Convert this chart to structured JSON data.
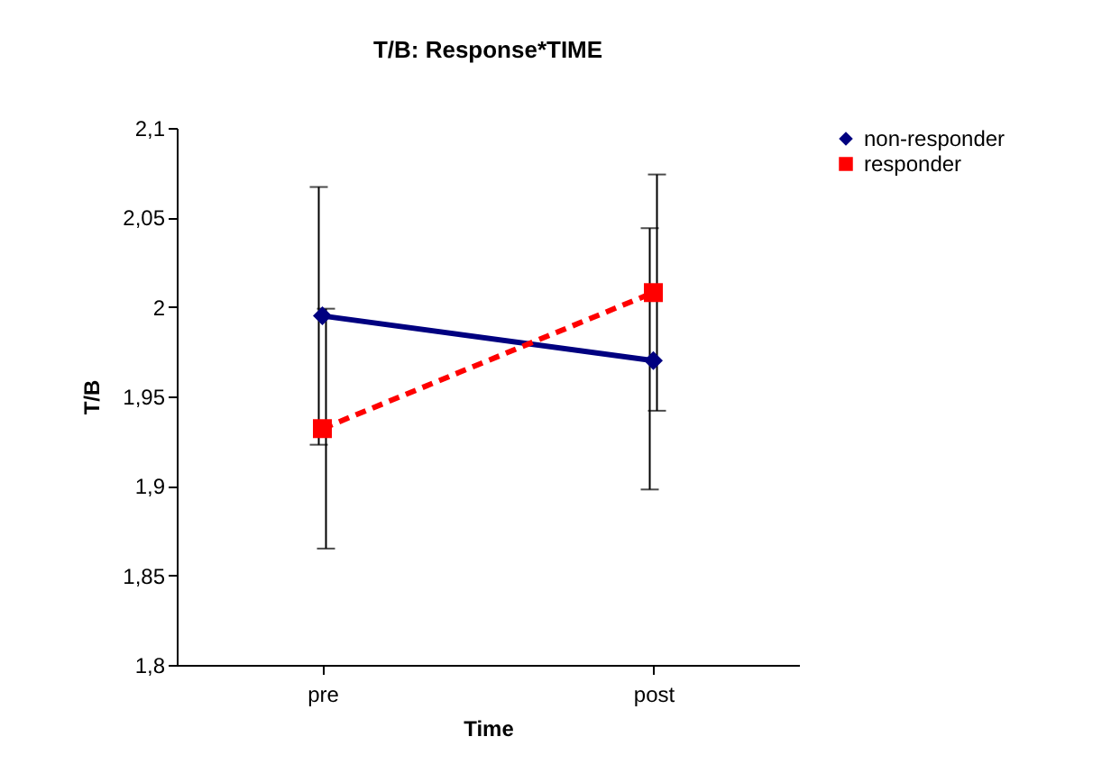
{
  "chart_data": {
    "type": "line",
    "title": "T/B: Response*TIME",
    "xlabel": "Time",
    "ylabel": "T/B",
    "categories": [
      "pre",
      "post"
    ],
    "series": [
      {
        "name": "non-responder",
        "color": "#000080",
        "values": [
          1.995,
          1.97
        ],
        "errors": [
          [
            1.923,
            2.067
          ],
          [
            1.898,
            2.044
          ]
        ],
        "marker": "diamond",
        "line_style": "solid"
      },
      {
        "name": "responder",
        "color": "#ff0000",
        "values": [
          1.932,
          2.008
        ],
        "errors": [
          [
            1.865,
            1.999
          ],
          [
            1.942,
            2.074
          ]
        ],
        "marker": "square",
        "line_style": "dashed"
      }
    ],
    "ylim": [
      1.8,
      2.1
    ],
    "yticks": [
      {
        "value": 1.8,
        "label": "1,8"
      },
      {
        "value": 1.85,
        "label": "1,85"
      },
      {
        "value": 1.9,
        "label": "1,9"
      },
      {
        "value": 1.95,
        "label": "1,95"
      },
      {
        "value": 2,
        "label": "2"
      },
      {
        "value": 2.05,
        "label": "2,05"
      },
      {
        "value": 2.1,
        "label": "2,1"
      }
    ],
    "grid": false,
    "legend": "right"
  }
}
